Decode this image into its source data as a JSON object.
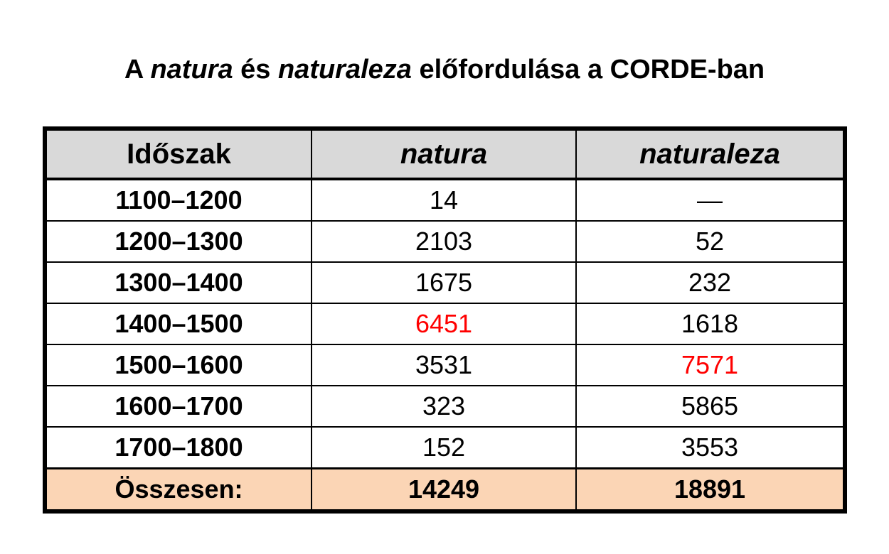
{
  "title": {
    "part1": "A ",
    "word1": "natura",
    "part2": " és ",
    "word2": "naturaleza",
    "part3": " előfordulása a CORDE-ban"
  },
  "colors": {
    "header_bg": "#d9d9d9",
    "total_bg": "#fbd5b5",
    "highlight": "#ff0000"
  },
  "chart_data": {
    "type": "table",
    "title": "A natura és naturaleza előfordulása a CORDE-ban",
    "columns": [
      "Időszak",
      "natura",
      "naturaleza"
    ],
    "rows": [
      {
        "period": "1100–1200",
        "natura": "14",
        "naturaleza": "—",
        "natura_highlight": false,
        "naturaleza_highlight": false
      },
      {
        "period": "1200–1300",
        "natura": "2103",
        "naturaleza": "52",
        "natura_highlight": false,
        "naturaleza_highlight": false
      },
      {
        "period": "1300–1400",
        "natura": "1675",
        "naturaleza": "232",
        "natura_highlight": false,
        "naturaleza_highlight": false
      },
      {
        "period": "1400–1500",
        "natura": "6451",
        "naturaleza": "1618",
        "natura_highlight": true,
        "naturaleza_highlight": false
      },
      {
        "period": "1500–1600",
        "natura": "3531",
        "naturaleza": "7571",
        "natura_highlight": false,
        "naturaleza_highlight": true
      },
      {
        "period": "1600–1700",
        "natura": "323",
        "naturaleza": "5865",
        "natura_highlight": false,
        "naturaleza_highlight": false
      },
      {
        "period": "1700–1800",
        "natura": "152",
        "naturaleza": "3553",
        "natura_highlight": false,
        "naturaleza_highlight": false
      }
    ],
    "total": {
      "label": "Összesen:",
      "natura": "14249",
      "naturaleza": "18891"
    }
  }
}
